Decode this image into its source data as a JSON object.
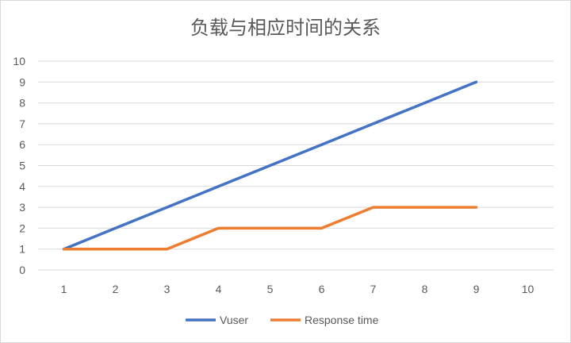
{
  "chart_data": {
    "type": "line",
    "title": "负载与相应时间的关系",
    "xlabel": "",
    "ylabel": "",
    "x": [
      1,
      2,
      3,
      4,
      5,
      6,
      7,
      8,
      9
    ],
    "x_ticks": [
      "1",
      "2",
      "3",
      "4",
      "5",
      "6",
      "7",
      "8",
      "9",
      "10"
    ],
    "y_ticks": [
      "0",
      "1",
      "2",
      "3",
      "4",
      "5",
      "6",
      "7",
      "8",
      "9",
      "10"
    ],
    "xlim": [
      1,
      10
    ],
    "ylim": [
      0,
      10
    ],
    "grid": "horizontal",
    "legend": "bottom",
    "series": [
      {
        "name": "Vuser",
        "color": "#4472c4",
        "values": [
          1,
          2,
          3,
          4,
          5,
          6,
          7,
          8,
          9
        ]
      },
      {
        "name": "Response time",
        "color": "#ed7d31",
        "values": [
          1,
          1,
          1,
          2,
          2,
          2,
          3,
          3,
          3
        ]
      }
    ]
  }
}
